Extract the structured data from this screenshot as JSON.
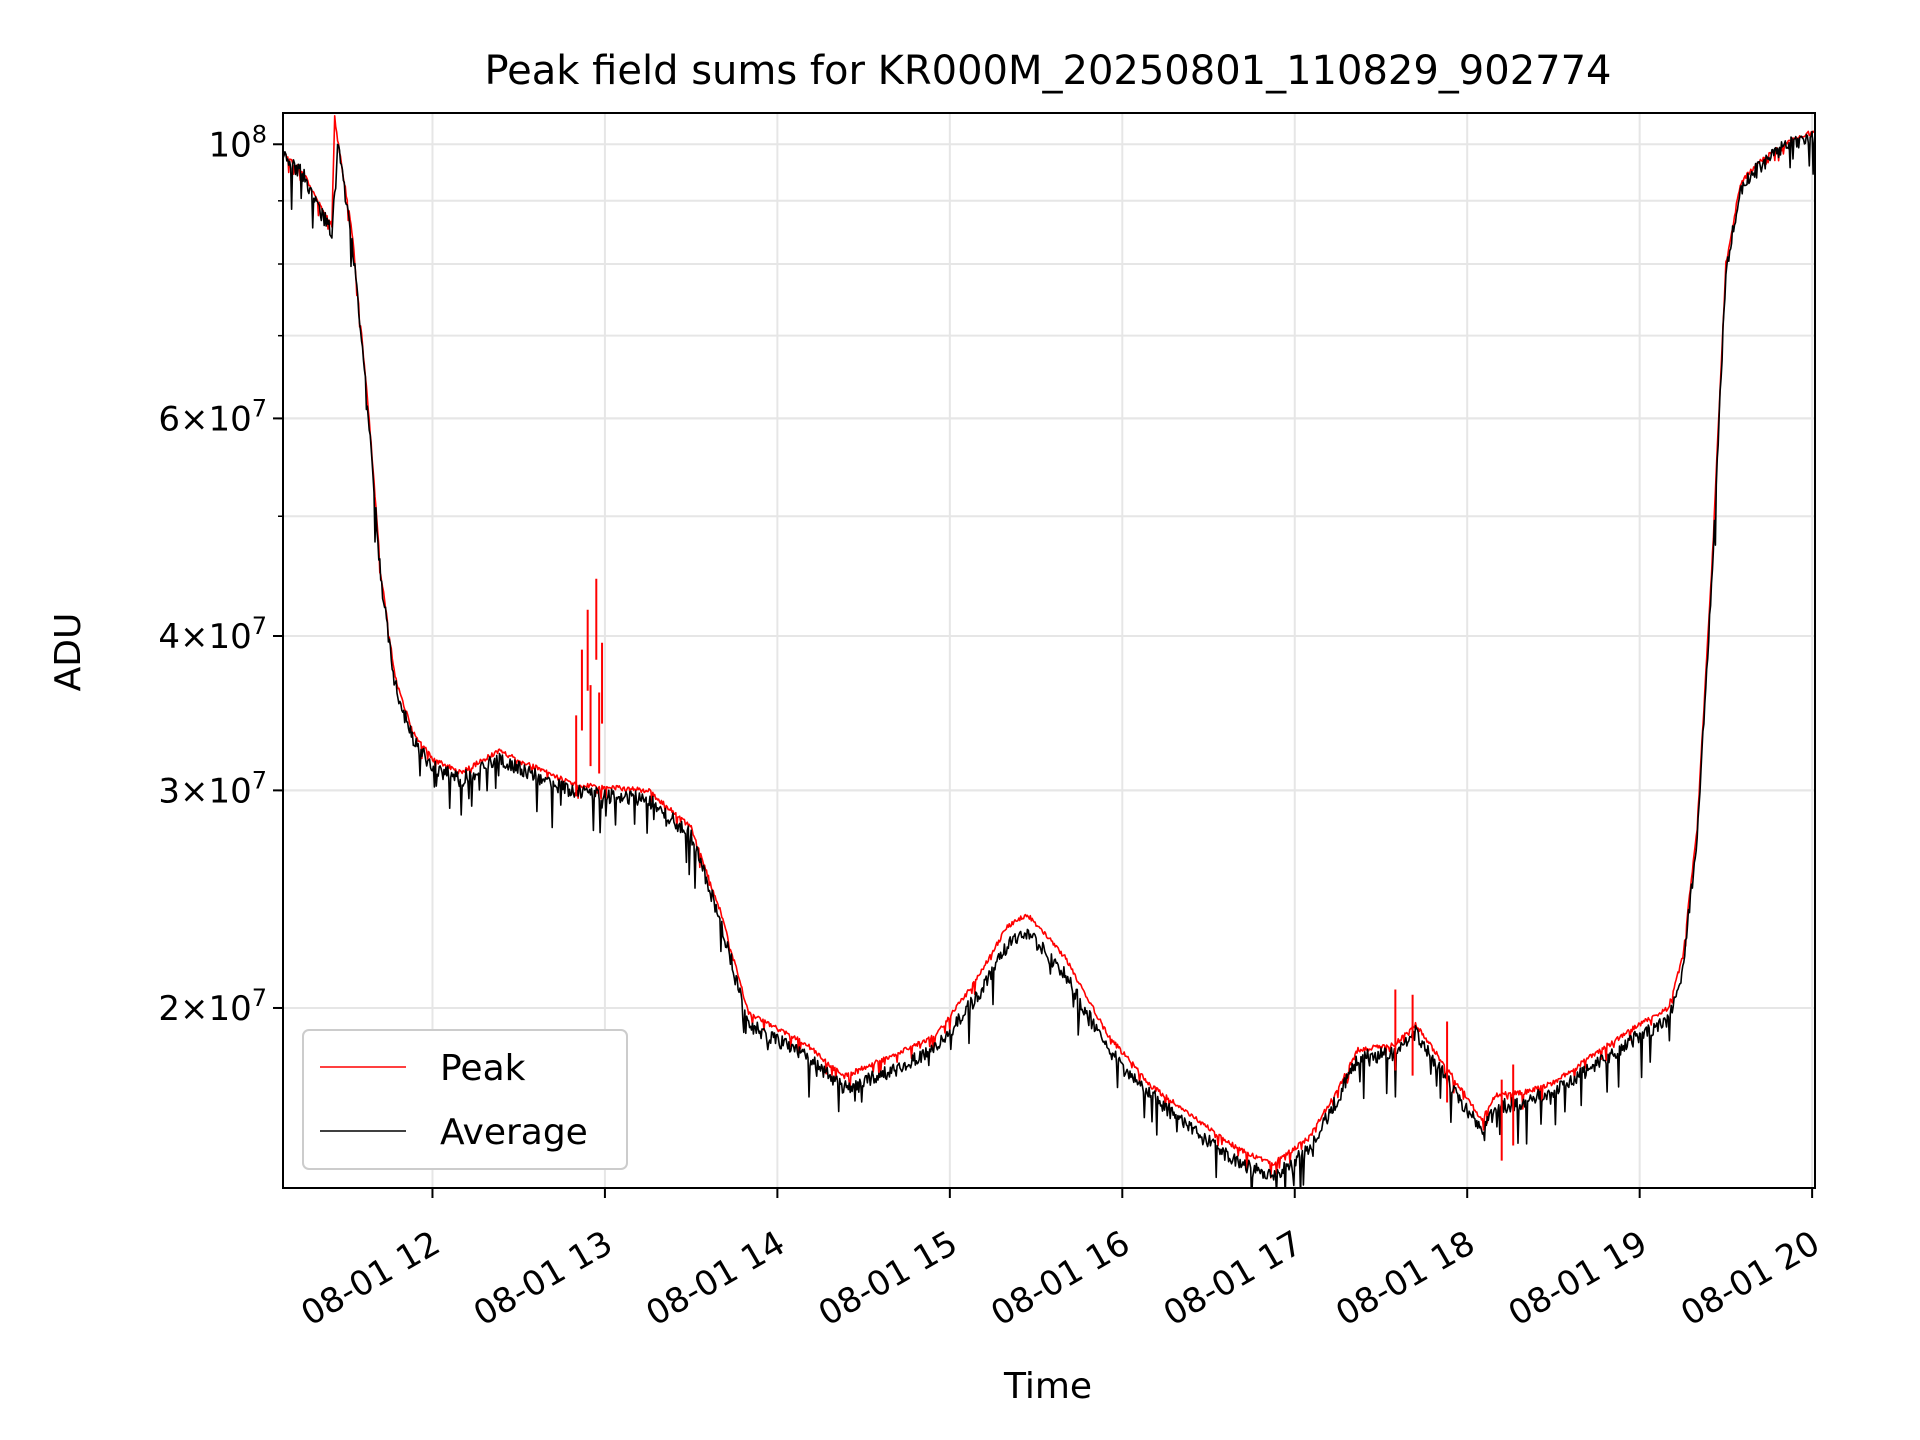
{
  "chart_data": {
    "type": "line",
    "title": "Peak field sums for KR000M_20250801_110829_902774",
    "xlabel": "Time",
    "ylabel": "ADU",
    "xlim": [
      "2025-08-01 11:08",
      "2025-08-01 20:01"
    ],
    "ylim": [
      14300000,
      106000000
    ],
    "yscale": "log",
    "grid": true,
    "legend": "lower-left",
    "x_tick_labels": [
      "08-01 12",
      "08-01 13",
      "08-01 14",
      "08-01 15",
      "08-01 16",
      "08-01 17",
      "08-01 18",
      "08-01 19",
      "08-01 20"
    ],
    "x_tick_values": [
      "2025-08-01 12:00",
      "2025-08-01 13:00",
      "2025-08-01 14:00",
      "2025-08-01 15:00",
      "2025-08-01 16:00",
      "2025-08-01 17:00",
      "2025-08-01 18:00",
      "2025-08-01 19:00",
      "2025-08-01 20:00"
    ],
    "y_ticks": [
      {
        "value": 20000000,
        "mantissa": "2",
        "exp": "7"
      },
      {
        "value": 30000000,
        "mantissa": "3",
        "exp": "7"
      },
      {
        "value": 40000000,
        "mantissa": "4",
        "exp": "7"
      },
      {
        "value": 60000000,
        "mantissa": "6",
        "exp": "7"
      },
      {
        "value": 100000000,
        "mantissa": "",
        "exp": "8"
      }
    ],
    "x": [
      "2025-08-01 11:08",
      "2025-08-01 11:15",
      "2025-08-01 11:20",
      "2025-08-01 11:25",
      "2025-08-01 11:26",
      "2025-08-01 11:27",
      "2025-08-01 11:32",
      "2025-08-01 11:38",
      "2025-08-01 11:42",
      "2025-08-01 11:47",
      "2025-08-01 11:53",
      "2025-08-01 12:00",
      "2025-08-01 12:10",
      "2025-08-01 12:23",
      "2025-08-01 12:40",
      "2025-08-01 12:50",
      "2025-08-01 13:00",
      "2025-08-01 13:15",
      "2025-08-01 13:30",
      "2025-08-01 13:40",
      "2025-08-01 13:50",
      "2025-08-01 14:10",
      "2025-08-01 14:23",
      "2025-08-01 14:40",
      "2025-08-01 14:55",
      "2025-08-01 15:10",
      "2025-08-01 15:20",
      "2025-08-01 15:27",
      "2025-08-01 15:40",
      "2025-08-01 15:55",
      "2025-08-01 16:10",
      "2025-08-01 16:25",
      "2025-08-01 16:40",
      "2025-08-01 16:52",
      "2025-08-01 17:05",
      "2025-08-01 17:15",
      "2025-08-01 17:22",
      "2025-08-01 17:35",
      "2025-08-01 17:42",
      "2025-08-01 17:55",
      "2025-08-01 18:05",
      "2025-08-01 18:10",
      "2025-08-01 18:20",
      "2025-08-01 18:30",
      "2025-08-01 18:45",
      "2025-08-01 19:00",
      "2025-08-01 19:10",
      "2025-08-01 19:15",
      "2025-08-01 19:20",
      "2025-08-01 19:25",
      "2025-08-01 19:30",
      "2025-08-01 19:35",
      "2025-08-01 19:40",
      "2025-08-01 19:50",
      "2025-08-01 20:01"
    ],
    "series": [
      {
        "name": "Peak",
        "color": "#ff0000",
        "values": [
          98500000,
          95000000,
          90000000,
          86000000,
          105000000,
          101000000,
          85000000,
          60000000,
          45000000,
          37000000,
          33500000,
          31800000,
          31000000,
          32300000,
          31000000,
          30300000,
          30200000,
          30000000,
          28000000,
          24000000,
          19800000,
          18700000,
          17600000,
          18300000,
          19000000,
          21200000,
          23300000,
          23800000,
          22000000,
          19000000,
          17300000,
          16300000,
          15400000,
          14950000,
          15700000,
          17200000,
          18500000,
          18700000,
          19400000,
          17600000,
          16250000,
          17000000,
          17100000,
          17400000,
          18400000,
          19400000,
          20000000,
          22000000,
          28000000,
          45000000,
          80000000,
          93000000,
          96000000,
          100000000,
          102500000
        ]
      },
      {
        "name": "Average",
        "color": "#000000",
        "values": [
          98000000,
          94500000,
          89000000,
          85000000,
          92000000,
          100000000,
          84000000,
          59500000,
          44500000,
          36500000,
          33000000,
          31300000,
          30600000,
          31800000,
          30500000,
          29900000,
          29700000,
          29500000,
          27600000,
          23600000,
          19400000,
          18300000,
          17200000,
          17800000,
          18500000,
          20500000,
          22500000,
          23000000,
          21300000,
          18500000,
          17000000,
          15900000,
          15000000,
          14600000,
          15400000,
          16900000,
          18200000,
          18400000,
          19100000,
          17200000,
          15900000,
          16600000,
          16800000,
          17100000,
          18000000,
          19000000,
          19600000,
          21500000,
          27500000,
          44000000,
          79000000,
          92000000,
          95000000,
          99500000,
          102000000
        ]
      }
    ],
    "spikes": [
      {
        "series": "Peak",
        "x": [
          "2025-08-01 12:50",
          "2025-08-01 12:52",
          "2025-08-01 12:54",
          "2025-08-01 12:55",
          "2025-08-01 12:57",
          "2025-08-01 12:58",
          "2025-08-01 12:59",
          "2025-08-01 17:35",
          "2025-08-01 17:41",
          "2025-08-01 17:53",
          "2025-08-01 18:12",
          "2025-08-01 18:16"
        ],
        "values": [
          34500000,
          39000000,
          42000000,
          36500000,
          44500000,
          36000000,
          39500000,
          20700000,
          20500000,
          19500000,
          17500000,
          18000000
        ]
      }
    ]
  }
}
